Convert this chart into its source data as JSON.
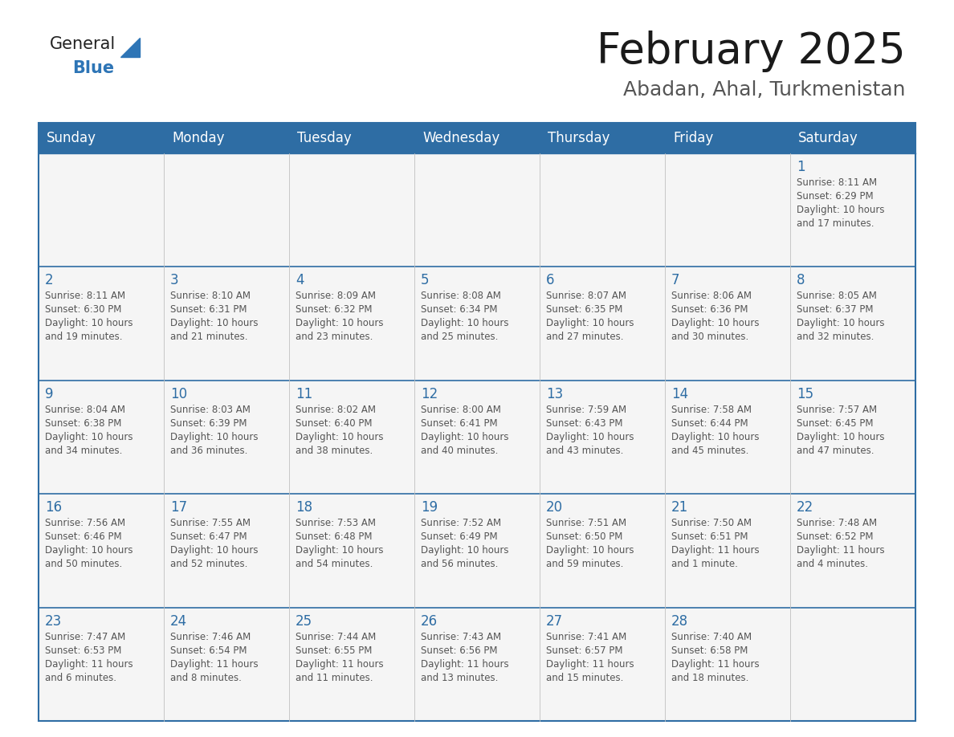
{
  "title": "February 2025",
  "subtitle": "Abadan, Ahal, Turkmenistan",
  "header_bg": "#2E6DA4",
  "header_text_color": "#FFFFFF",
  "day_number_color": "#2E6DA4",
  "text_color": "#555555",
  "line_color": "#2E6DA4",
  "cell_bg": "#F5F5F5",
  "days_of_week": [
    "Sunday",
    "Monday",
    "Tuesday",
    "Wednesday",
    "Thursday",
    "Friday",
    "Saturday"
  ],
  "weeks": [
    [
      {
        "day": null,
        "info": ""
      },
      {
        "day": null,
        "info": ""
      },
      {
        "day": null,
        "info": ""
      },
      {
        "day": null,
        "info": ""
      },
      {
        "day": null,
        "info": ""
      },
      {
        "day": null,
        "info": ""
      },
      {
        "day": 1,
        "info": "Sunrise: 8:11 AM\nSunset: 6:29 PM\nDaylight: 10 hours\nand 17 minutes."
      }
    ],
    [
      {
        "day": 2,
        "info": "Sunrise: 8:11 AM\nSunset: 6:30 PM\nDaylight: 10 hours\nand 19 minutes."
      },
      {
        "day": 3,
        "info": "Sunrise: 8:10 AM\nSunset: 6:31 PM\nDaylight: 10 hours\nand 21 minutes."
      },
      {
        "day": 4,
        "info": "Sunrise: 8:09 AM\nSunset: 6:32 PM\nDaylight: 10 hours\nand 23 minutes."
      },
      {
        "day": 5,
        "info": "Sunrise: 8:08 AM\nSunset: 6:34 PM\nDaylight: 10 hours\nand 25 minutes."
      },
      {
        "day": 6,
        "info": "Sunrise: 8:07 AM\nSunset: 6:35 PM\nDaylight: 10 hours\nand 27 minutes."
      },
      {
        "day": 7,
        "info": "Sunrise: 8:06 AM\nSunset: 6:36 PM\nDaylight: 10 hours\nand 30 minutes."
      },
      {
        "day": 8,
        "info": "Sunrise: 8:05 AM\nSunset: 6:37 PM\nDaylight: 10 hours\nand 32 minutes."
      }
    ],
    [
      {
        "day": 9,
        "info": "Sunrise: 8:04 AM\nSunset: 6:38 PM\nDaylight: 10 hours\nand 34 minutes."
      },
      {
        "day": 10,
        "info": "Sunrise: 8:03 AM\nSunset: 6:39 PM\nDaylight: 10 hours\nand 36 minutes."
      },
      {
        "day": 11,
        "info": "Sunrise: 8:02 AM\nSunset: 6:40 PM\nDaylight: 10 hours\nand 38 minutes."
      },
      {
        "day": 12,
        "info": "Sunrise: 8:00 AM\nSunset: 6:41 PM\nDaylight: 10 hours\nand 40 minutes."
      },
      {
        "day": 13,
        "info": "Sunrise: 7:59 AM\nSunset: 6:43 PM\nDaylight: 10 hours\nand 43 minutes."
      },
      {
        "day": 14,
        "info": "Sunrise: 7:58 AM\nSunset: 6:44 PM\nDaylight: 10 hours\nand 45 minutes."
      },
      {
        "day": 15,
        "info": "Sunrise: 7:57 AM\nSunset: 6:45 PM\nDaylight: 10 hours\nand 47 minutes."
      }
    ],
    [
      {
        "day": 16,
        "info": "Sunrise: 7:56 AM\nSunset: 6:46 PM\nDaylight: 10 hours\nand 50 minutes."
      },
      {
        "day": 17,
        "info": "Sunrise: 7:55 AM\nSunset: 6:47 PM\nDaylight: 10 hours\nand 52 minutes."
      },
      {
        "day": 18,
        "info": "Sunrise: 7:53 AM\nSunset: 6:48 PM\nDaylight: 10 hours\nand 54 minutes."
      },
      {
        "day": 19,
        "info": "Sunrise: 7:52 AM\nSunset: 6:49 PM\nDaylight: 10 hours\nand 56 minutes."
      },
      {
        "day": 20,
        "info": "Sunrise: 7:51 AM\nSunset: 6:50 PM\nDaylight: 10 hours\nand 59 minutes."
      },
      {
        "day": 21,
        "info": "Sunrise: 7:50 AM\nSunset: 6:51 PM\nDaylight: 11 hours\nand 1 minute."
      },
      {
        "day": 22,
        "info": "Sunrise: 7:48 AM\nSunset: 6:52 PM\nDaylight: 11 hours\nand 4 minutes."
      }
    ],
    [
      {
        "day": 23,
        "info": "Sunrise: 7:47 AM\nSunset: 6:53 PM\nDaylight: 11 hours\nand 6 minutes."
      },
      {
        "day": 24,
        "info": "Sunrise: 7:46 AM\nSunset: 6:54 PM\nDaylight: 11 hours\nand 8 minutes."
      },
      {
        "day": 25,
        "info": "Sunrise: 7:44 AM\nSunset: 6:55 PM\nDaylight: 11 hours\nand 11 minutes."
      },
      {
        "day": 26,
        "info": "Sunrise: 7:43 AM\nSunset: 6:56 PM\nDaylight: 11 hours\nand 13 minutes."
      },
      {
        "day": 27,
        "info": "Sunrise: 7:41 AM\nSunset: 6:57 PM\nDaylight: 11 hours\nand 15 minutes."
      },
      {
        "day": 28,
        "info": "Sunrise: 7:40 AM\nSunset: 6:58 PM\nDaylight: 11 hours\nand 18 minutes."
      },
      {
        "day": null,
        "info": ""
      }
    ]
  ],
  "logo_general_color": "#222222",
  "logo_blue_color": "#2E75B6",
  "logo_triangle_color": "#2E75B6",
  "figsize": [
    11.88,
    9.18
  ],
  "dpi": 100
}
